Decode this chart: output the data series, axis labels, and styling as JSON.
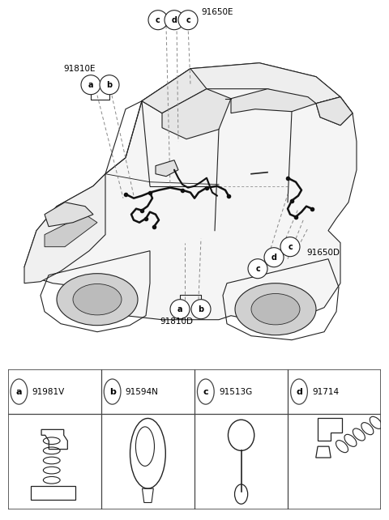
{
  "bg_color": "#ffffff",
  "line_color": "#222222",
  "gray_color": "#888888",
  "label_91810E": "91810E",
  "label_91810D": "91810D",
  "label_91650E": "91650E",
  "label_91650D": "91650D",
  "parts": [
    {
      "id": "a",
      "part_num": "91981V"
    },
    {
      "id": "b",
      "part_num": "91594N"
    },
    {
      "id": "c",
      "part_num": "91513G"
    },
    {
      "id": "d",
      "part_num": "91714"
    }
  ],
  "car_color": "#dddddd",
  "wire_color": "#111111",
  "callout_lw": 0.7,
  "car_lw": 0.8,
  "wire_lw": 1.5
}
